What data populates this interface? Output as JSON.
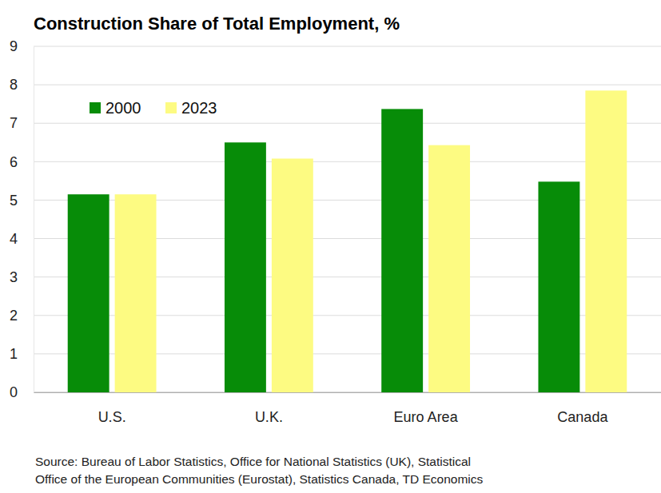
{
  "chart_data": {
    "type": "bar",
    "title": "Construction Share of Total Employment, %",
    "categories": [
      "U.S.",
      "U.K.",
      "Euro Area",
      "Canada"
    ],
    "series": [
      {
        "name": "2000",
        "color": "#078c08",
        "values": [
          5.15,
          6.5,
          7.37,
          5.48
        ]
      },
      {
        "name": "2023",
        "color": "#fdfb82",
        "values": [
          5.15,
          6.08,
          6.43,
          7.85
        ]
      }
    ],
    "ylim": [
      0,
      9
    ],
    "yticks": [
      0,
      1,
      2,
      3,
      4,
      5,
      6,
      7,
      8,
      9
    ],
    "grid": true,
    "legend": "top-left",
    "source": [
      "Source: Bureau of Labor Statistics, Office for National Statistics (UK), Statistical",
      "Office of the European Communities (Eurostat), Statistics Canada, TD Economics"
    ]
  }
}
